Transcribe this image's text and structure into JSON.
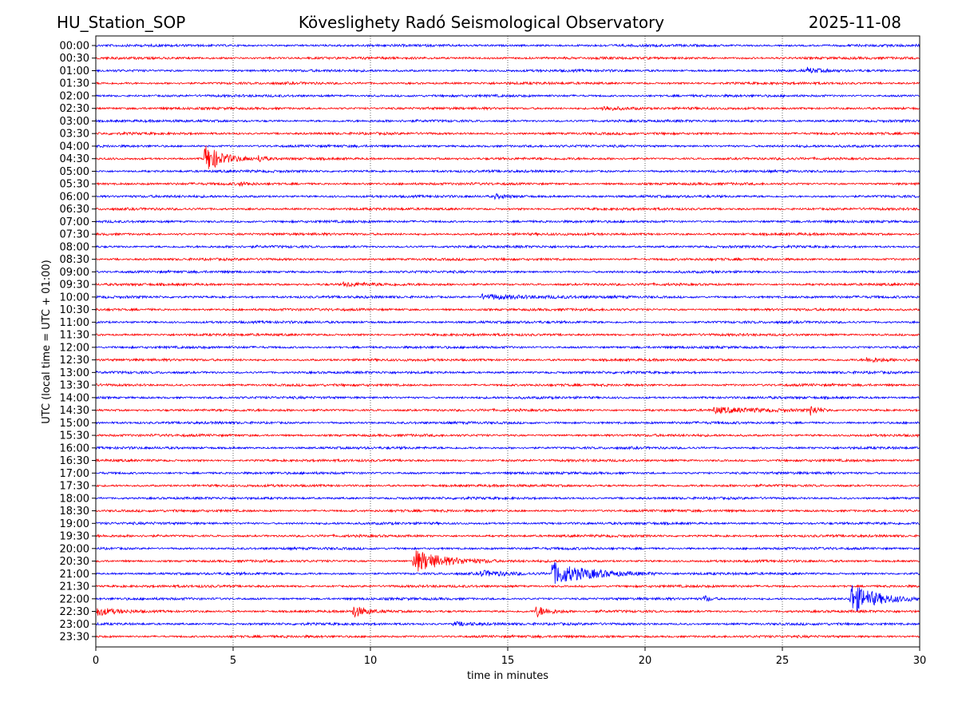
{
  "header": {
    "station": "HU_Station_SOP",
    "title": "Köveslighety Radó Seismological Observatory",
    "date": "2025-11-08"
  },
  "chart_data": {
    "type": "line",
    "title": "Köveslighety Radó Seismological Observatory",
    "xlabel": "time in minutes",
    "ylabel": "UTC (local time = UTC + 01:00)",
    "xlim": [
      0,
      30
    ],
    "xticks": [
      "0",
      "5",
      "10",
      "15",
      "20",
      "25",
      "30"
    ],
    "xtick_values": [
      0,
      5,
      10,
      15,
      20,
      25,
      30
    ],
    "grid": "vertical dotted at x ticks",
    "colors": [
      "#0000ff",
      "#ff0000"
    ],
    "rows": [
      "00:00",
      "00:30",
      "01:00",
      "01:30",
      "02:00",
      "02:30",
      "03:00",
      "03:30",
      "04:00",
      "04:30",
      "05:00",
      "05:30",
      "06:00",
      "06:30",
      "07:00",
      "07:30",
      "08:00",
      "08:30",
      "09:00",
      "09:30",
      "10:00",
      "10:30",
      "11:00",
      "11:30",
      "12:00",
      "12:30",
      "13:00",
      "13:30",
      "14:00",
      "14:30",
      "15:00",
      "15:30",
      "16:00",
      "16:30",
      "17:00",
      "17:30",
      "18:00",
      "18:30",
      "19:00",
      "19:30",
      "20:00",
      "20:30",
      "21:00",
      "21:30",
      "22:00",
      "22:30",
      "23:00",
      "23:30"
    ],
    "events": [
      {
        "row": "01:00",
        "start_min": 25.9,
        "duration_min": 1.2,
        "amplitude": 2.5
      },
      {
        "row": "02:30",
        "start_min": 18.4,
        "duration_min": 1.8,
        "amplitude": 2.5
      },
      {
        "row": "04:30",
        "start_min": 3.95,
        "duration_min": 1.8,
        "amplitude": 14
      },
      {
        "row": "04:30",
        "start_min": 5.9,
        "duration_min": 0.6,
        "amplitude": 4
      },
      {
        "row": "05:30",
        "start_min": 5.2,
        "duration_min": 0.8,
        "amplitude": 2
      },
      {
        "row": "06:00",
        "start_min": 14.5,
        "duration_min": 1.8,
        "amplitude": 2
      },
      {
        "row": "09:30",
        "start_min": 9.0,
        "duration_min": 2.5,
        "amplitude": 1.8
      },
      {
        "row": "10:00",
        "start_min": 14.0,
        "duration_min": 5.5,
        "amplitude": 2.5
      },
      {
        "row": "12:30",
        "start_min": 28.0,
        "duration_min": 2.0,
        "amplitude": 2
      },
      {
        "row": "14:30",
        "start_min": 22.5,
        "duration_min": 4.5,
        "amplitude": 2.5
      },
      {
        "row": "14:30",
        "start_min": 26.0,
        "duration_min": 0.8,
        "amplitude": 5
      },
      {
        "row": "20:30",
        "start_min": 11.55,
        "duration_min": 3.0,
        "amplitude": 12
      },
      {
        "row": "21:00",
        "start_min": 14.0,
        "duration_min": 2.6,
        "amplitude": 2.5
      },
      {
        "row": "21:00",
        "start_min": 16.6,
        "duration_min": 4.0,
        "amplitude": 11
      },
      {
        "row": "22:00",
        "start_min": 22.1,
        "duration_min": 0.6,
        "amplitude": 4
      },
      {
        "row": "22:00",
        "start_min": 27.45,
        "duration_min": 2.6,
        "amplitude": 15
      },
      {
        "row": "22:30",
        "start_min": 0.0,
        "duration_min": 1.8,
        "amplitude": 4
      },
      {
        "row": "22:30",
        "start_min": 9.35,
        "duration_min": 1.2,
        "amplitude": 6
      },
      {
        "row": "22:30",
        "start_min": 16.0,
        "duration_min": 1.2,
        "amplitude": 6
      },
      {
        "row": "23:00",
        "start_min": 13.0,
        "duration_min": 3.0,
        "amplitude": 1.8
      }
    ]
  }
}
